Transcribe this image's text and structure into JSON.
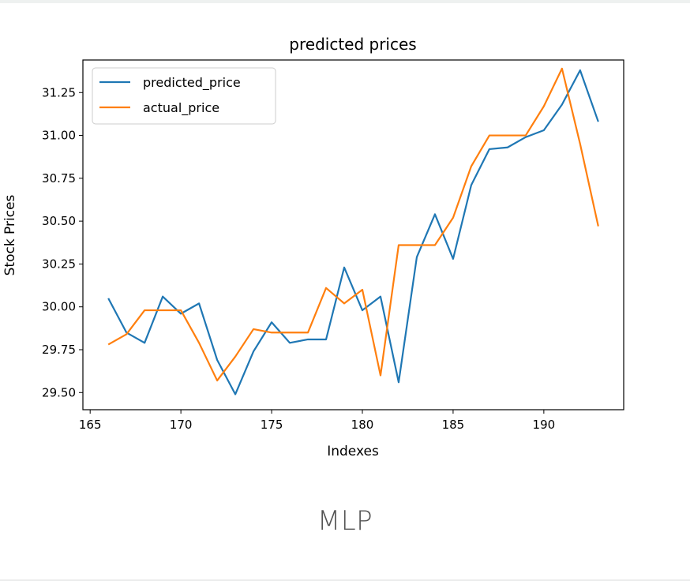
{
  "caption": "MLP",
  "chart_data": {
    "type": "line",
    "title": "predicted prices",
    "xlabel": "Indexes",
    "ylabel": "Stock Prices",
    "xlim": [
      164.6,
      194.4
    ],
    "ylim": [
      29.4,
      31.44
    ],
    "xticks": [
      165,
      170,
      175,
      180,
      185,
      190
    ],
    "yticks": [
      29.5,
      29.75,
      30.0,
      30.25,
      30.5,
      30.75,
      31.0,
      31.25
    ],
    "ytick_labels": [
      "29.50",
      "29.75",
      "30.00",
      "30.25",
      "30.50",
      "30.75",
      "31.00",
      "31.25"
    ],
    "legend_position": "upper-left",
    "grid": false,
    "x": [
      166,
      167,
      168,
      169,
      170,
      171,
      172,
      173,
      174,
      175,
      176,
      177,
      178,
      179,
      180,
      181,
      182,
      183,
      184,
      185,
      186,
      187,
      188,
      189,
      190,
      191,
      192,
      193
    ],
    "series": [
      {
        "name": "predicted_price",
        "color": "#1f77b4",
        "values": [
          30.05,
          29.85,
          29.79,
          30.06,
          29.96,
          30.02,
          29.69,
          29.49,
          29.74,
          29.91,
          29.79,
          29.81,
          29.81,
          30.23,
          29.98,
          30.06,
          29.56,
          30.29,
          30.54,
          30.28,
          30.71,
          30.92,
          30.93,
          30.99,
          31.03,
          31.18,
          31.38,
          31.08
        ]
      },
      {
        "name": "actual_price",
        "color": "#ff7f0e",
        "values": [
          29.78,
          29.84,
          29.98,
          29.98,
          29.98,
          29.79,
          29.57,
          29.71,
          29.87,
          29.85,
          29.85,
          29.85,
          30.11,
          30.02,
          30.1,
          29.6,
          30.36,
          30.36,
          30.36,
          30.52,
          30.82,
          31.0,
          31.0,
          31.0,
          31.17,
          31.39,
          30.95,
          30.47
        ]
      }
    ]
  }
}
